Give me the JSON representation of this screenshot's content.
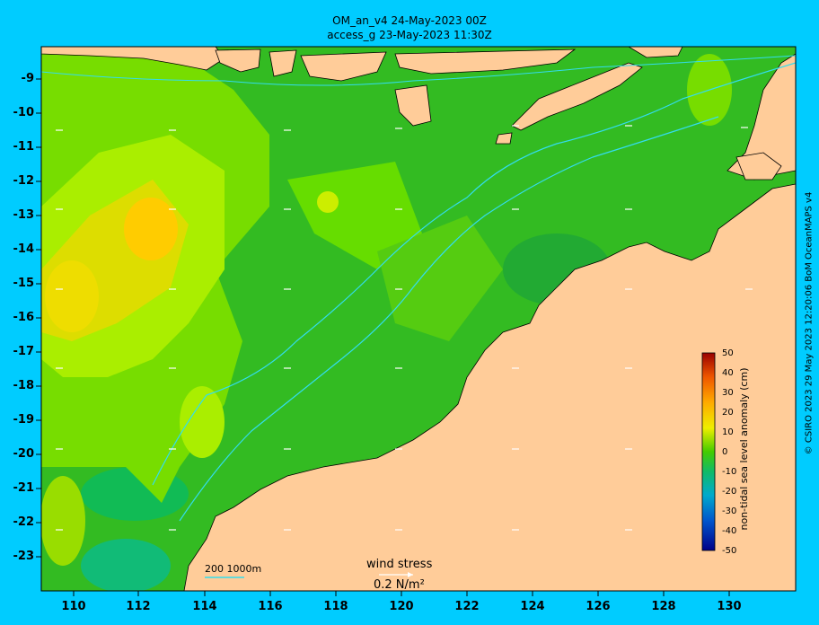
{
  "title": {
    "line1": "OM_an_v4  24-May-2023 00Z",
    "line2": "access_g 23-May-2023 11:30Z"
  },
  "axes": {
    "lat_labels": [
      "-9",
      "-10",
      "-11",
      "-12",
      "-13",
      "-14",
      "-15",
      "-16",
      "-17",
      "-18",
      "-19",
      "-20",
      "-21",
      "-22",
      "-23"
    ],
    "lon_labels": [
      "110",
      "112",
      "114",
      "116",
      "118",
      "120",
      "122",
      "124",
      "126",
      "128",
      "130"
    ]
  },
  "colorbar": {
    "label": "non-tidal sea level anomaly (cm)",
    "ticks": [
      "50",
      "40",
      "30",
      "20",
      "10",
      "0",
      "-10",
      "-20",
      "-30",
      "-40",
      "-50"
    ]
  },
  "legend": {
    "contour_label": "200  1000m",
    "vector_title": "wind stress",
    "vector_unit": "0.2 N/m²"
  },
  "credit": "© CSIRO 2023   29 May 2023 12:20:06 BoM OceanMAPS v4",
  "colors": {
    "background": "#00ccff",
    "land": "#ffcc99",
    "bathy_contour": "#33ddee",
    "field_low": "#11bb44",
    "field_mid": "#44cc00",
    "field_high": "#eeee00",
    "field_peak": "#ffbb00"
  }
}
